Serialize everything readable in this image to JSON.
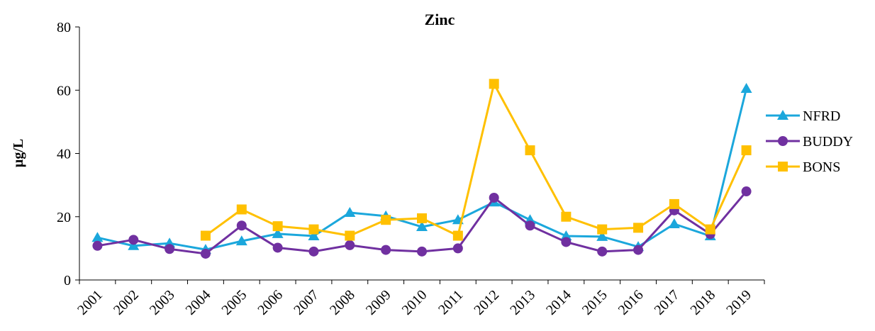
{
  "chart_data": {
    "type": "line",
    "title": "Zinc",
    "y_label": "µg/L",
    "categories": [
      "2001",
      "2002",
      "2003",
      "2004",
      "2005",
      "2006",
      "2007",
      "2008",
      "2009",
      "2010",
      "2011",
      "2012",
      "2013",
      "2014",
      "2015",
      "2016",
      "2017",
      "2018",
      "2019"
    ],
    "series": [
      {
        "name": "NFRD",
        "color": "#1ba7dc",
        "marker": "triangle",
        "values": [
          13.4,
          10.8,
          11.6,
          9.6,
          12.3,
          14.6,
          13.9,
          21.3,
          20.2,
          16.8,
          19,
          24.6,
          19,
          13.9,
          13.7,
          10.5,
          17.7,
          13.9,
          60.5
        ]
      },
      {
        "name": "BUDDY",
        "color": "#7030a0",
        "marker": "circle",
        "values": [
          10.8,
          12.7,
          9.8,
          8.3,
          17.2,
          10.2,
          9,
          11,
          9.5,
          9,
          10,
          26,
          17.2,
          12,
          9,
          9.5,
          22,
          14.5,
          28
        ]
      },
      {
        "name": "BONS",
        "color": "#ffc000",
        "marker": "square",
        "values": [
          null,
          null,
          null,
          14,
          22.3,
          17,
          16,
          14,
          19,
          19.5,
          14,
          62,
          41,
          20,
          16,
          16.5,
          24,
          16,
          41
        ]
      }
    ],
    "ylim": [
      0,
      80
    ],
    "yticks": [
      0,
      20,
      40,
      60,
      80
    ],
    "legend": "right"
  }
}
